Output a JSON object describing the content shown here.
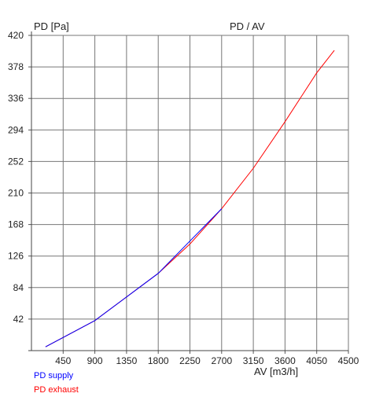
{
  "chart_data": {
    "type": "line",
    "title": "PD / AV",
    "ylabel": "PD [Pa]",
    "xlabel": "AV [m3/h]",
    "xlim": [
      0,
      4500
    ],
    "ylim": [
      0,
      420
    ],
    "xticks": [
      "450",
      "900",
      "1350",
      "1800",
      "2250",
      "2700",
      "3150",
      "3600",
      "4050",
      "4500"
    ],
    "yticks": [
      "42",
      "84",
      "126",
      "168",
      "210",
      "252",
      "294",
      "336",
      "378",
      "420"
    ],
    "grid": true,
    "legend_position": "bottom-left",
    "series": [
      {
        "name": "PD supply",
        "color": "#0000ff",
        "points": [
          [
            200,
            5
          ],
          [
            900,
            40
          ],
          [
            1800,
            103
          ],
          [
            2700,
            189
          ]
        ]
      },
      {
        "name": "PD exhaust",
        "color": "#ff0000",
        "points": [
          [
            200,
            5
          ],
          [
            900,
            40
          ],
          [
            1800,
            103
          ],
          [
            2250,
            142
          ],
          [
            2700,
            189
          ],
          [
            3150,
            243
          ],
          [
            3600,
            305
          ],
          [
            4050,
            370
          ],
          [
            4300,
            400
          ]
        ]
      }
    ]
  }
}
